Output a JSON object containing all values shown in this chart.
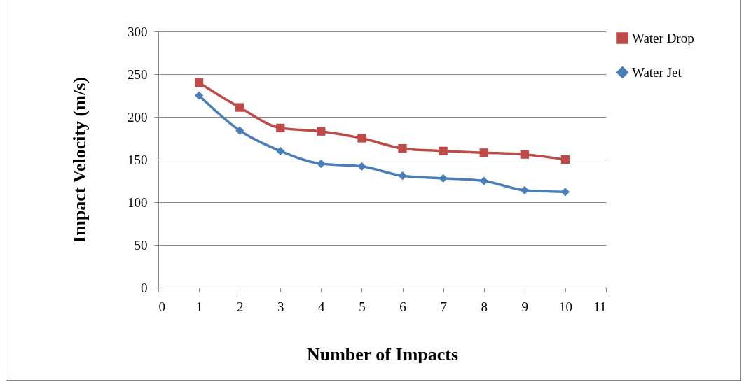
{
  "chart_data": {
    "type": "line",
    "xlabel": "Number of Impacts",
    "ylabel": "Impact Velocity (m/s)",
    "x": [
      1,
      2,
      3,
      4,
      5,
      6,
      7,
      8,
      9,
      10
    ],
    "series": [
      {
        "name": "Water Drop",
        "color": "#be4b48",
        "marker": "square",
        "values": [
          240,
          211,
          187,
          183,
          175,
          163,
          160,
          158,
          156,
          150
        ]
      },
      {
        "name": "Water Jet",
        "color": "#4a7ebb",
        "marker": "diamond",
        "values": [
          225,
          184,
          160,
          145,
          142,
          131,
          128,
          125,
          114,
          112
        ]
      }
    ],
    "xlim": [
      0,
      11
    ],
    "xticks": [
      0,
      1,
      2,
      3,
      4,
      5,
      6,
      7,
      8,
      9,
      10,
      11
    ],
    "ylim": [
      0,
      300
    ],
    "yticks": [
      0,
      50,
      100,
      150,
      200,
      250,
      300
    ],
    "grid": "y",
    "legend": "right",
    "line_style": "solid"
  }
}
